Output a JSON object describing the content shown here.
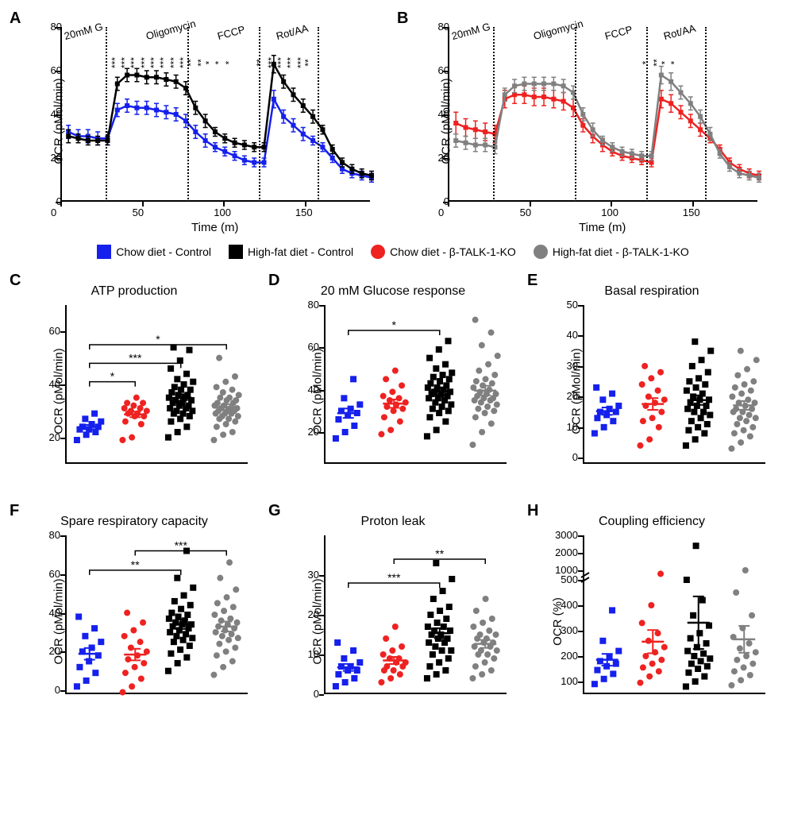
{
  "colors": {
    "chow_control": "#1520ec",
    "hfd_control": "#000000",
    "chow_ko": "#ee2221",
    "hfd_ko": "#808080",
    "axis": "#000000",
    "bg": "#ffffff"
  },
  "legend": [
    {
      "label": "Chow diet - Control",
      "color": "#1520ec",
      "shape": "square"
    },
    {
      "label": "High-fat diet - Control",
      "color": "#000000",
      "shape": "square"
    },
    {
      "label": "Chow diet - β-TALK-1-KO",
      "color": "#ee2221",
      "shape": "circle"
    },
    {
      "label": "High-fat diet - β-TALK-1-KO",
      "color": "#808080",
      "shape": "circle"
    }
  ],
  "panelA": {
    "label": "A",
    "ylabel": "OCR (pMol/min)",
    "xlabel": "Time (m)",
    "xlim": [
      0,
      190
    ],
    "ylim": [
      0,
      80
    ],
    "xticks": [
      0,
      50,
      100,
      150
    ],
    "yticks": [
      0,
      20,
      40,
      60,
      80
    ],
    "vlines": [
      28,
      78,
      122,
      158
    ],
    "injections": [
      {
        "x": 28,
        "label": "20mM G"
      },
      {
        "x": 78,
        "label": "Oligomycin"
      },
      {
        "x": 122,
        "label": "FCCP"
      },
      {
        "x": 158,
        "label": "Rot/AA"
      }
    ],
    "series": [
      {
        "name": "chow_control",
        "color": "#1520ec",
        "x": [
          4,
          10,
          16,
          22,
          28,
          34,
          40,
          46,
          52,
          58,
          64,
          70,
          76,
          82,
          88,
          94,
          100,
          106,
          112,
          118,
          124,
          130,
          136,
          142,
          148,
          154,
          160,
          166,
          172,
          178,
          184,
          190
        ],
        "y": [
          32,
          30,
          30,
          29,
          29,
          42,
          44,
          43,
          43,
          42,
          41,
          40,
          37,
          32,
          28,
          25,
          23,
          21,
          19,
          18,
          18,
          47,
          39,
          35,
          31,
          28,
          25,
          20,
          15,
          13,
          12,
          11
        ],
        "err": [
          3,
          3,
          3,
          3,
          3,
          3,
          3,
          3,
          3,
          3,
          3,
          3,
          3,
          3,
          3,
          2,
          2,
          2,
          2,
          2,
          2,
          4,
          3,
          3,
          3,
          2,
          2,
          2,
          2,
          2,
          2,
          2
        ]
      },
      {
        "name": "hfd_control",
        "color": "#000000",
        "x": [
          4,
          10,
          16,
          22,
          28,
          34,
          40,
          46,
          52,
          58,
          64,
          70,
          76,
          82,
          88,
          94,
          100,
          106,
          112,
          118,
          124,
          130,
          136,
          142,
          148,
          154,
          160,
          166,
          172,
          178,
          184,
          190
        ],
        "y": [
          30,
          29,
          28,
          28,
          28,
          54,
          58,
          58,
          57,
          57,
          56,
          55,
          52,
          43,
          37,
          32,
          29,
          27,
          26,
          25,
          25,
          63,
          55,
          49,
          44,
          39,
          33,
          24,
          18,
          15,
          13,
          12
        ],
        "err": [
          3,
          2,
          2,
          2,
          2,
          3,
          3,
          3,
          3,
          3,
          3,
          3,
          3,
          3,
          3,
          2,
          2,
          2,
          2,
          2,
          2,
          4,
          3,
          3,
          3,
          3,
          2,
          2,
          2,
          2,
          2,
          2
        ]
      }
    ],
    "sigstars": [
      {
        "x": 34,
        "txt": "***"
      },
      {
        "x": 40,
        "txt": "***"
      },
      {
        "x": 46,
        "txt": "***"
      },
      {
        "x": 52,
        "txt": "***"
      },
      {
        "x": 58,
        "txt": "***"
      },
      {
        "x": 64,
        "txt": "***"
      },
      {
        "x": 70,
        "txt": "***"
      },
      {
        "x": 76,
        "txt": "***"
      },
      {
        "x": 82,
        "txt": "**"
      },
      {
        "x": 88,
        "txt": "**"
      },
      {
        "x": 94,
        "txt": "*"
      },
      {
        "x": 100,
        "txt": "*"
      },
      {
        "x": 106,
        "txt": "*"
      },
      {
        "x": 124,
        "txt": "**"
      },
      {
        "x": 130,
        "txt": "***"
      },
      {
        "x": 136,
        "txt": "***"
      },
      {
        "x": 142,
        "txt": "***"
      },
      {
        "x": 148,
        "txt": "***"
      },
      {
        "x": 154,
        "txt": "**"
      }
    ]
  },
  "panelB": {
    "label": "B",
    "ylabel": "OCR (pMol/min)",
    "xlabel": "Time (m)",
    "xlim": [
      0,
      190
    ],
    "ylim": [
      0,
      80
    ],
    "xticks": [
      0,
      50,
      100,
      150
    ],
    "yticks": [
      0,
      20,
      40,
      60,
      80
    ],
    "vlines": [
      28,
      78,
      122,
      158
    ],
    "injections": [
      {
        "x": 28,
        "label": "20mM G"
      },
      {
        "x": 78,
        "label": "Oligomycin"
      },
      {
        "x": 122,
        "label": "FCCP"
      },
      {
        "x": 158,
        "label": "Rot/AA"
      }
    ],
    "series": [
      {
        "name": "chow_ko",
        "color": "#ee2221",
        "x": [
          4,
          10,
          16,
          22,
          28,
          34,
          40,
          46,
          52,
          58,
          64,
          70,
          76,
          82,
          88,
          94,
          100,
          106,
          112,
          118,
          124,
          130,
          136,
          142,
          148,
          154,
          160,
          166,
          172,
          178,
          184,
          190
        ],
        "y": [
          36,
          34,
          33,
          32,
          31,
          47,
          49,
          49,
          48,
          48,
          47,
          46,
          43,
          35,
          30,
          26,
          23,
          21,
          20,
          19,
          18,
          47,
          45,
          41,
          37,
          33,
          29,
          24,
          18,
          15,
          13,
          12
        ],
        "err": [
          5,
          4,
          4,
          4,
          4,
          4,
          4,
          4,
          4,
          4,
          4,
          4,
          4,
          3,
          3,
          3,
          2,
          2,
          2,
          2,
          2,
          4,
          4,
          3,
          3,
          3,
          2,
          2,
          2,
          2,
          2,
          2
        ]
      },
      {
        "name": "hfd_ko",
        "color": "#808080",
        "x": [
          4,
          10,
          16,
          22,
          28,
          34,
          40,
          46,
          52,
          58,
          64,
          70,
          76,
          82,
          88,
          94,
          100,
          106,
          112,
          118,
          124,
          130,
          136,
          142,
          148,
          154,
          160,
          166,
          172,
          178,
          184,
          190
        ],
        "y": [
          28,
          27,
          26,
          26,
          25,
          49,
          53,
          54,
          54,
          54,
          54,
          53,
          50,
          40,
          33,
          28,
          25,
          23,
          22,
          21,
          21,
          58,
          55,
          50,
          45,
          39,
          31,
          22,
          16,
          13,
          12,
          11
        ],
        "err": [
          3,
          3,
          3,
          3,
          3,
          3,
          3,
          3,
          3,
          3,
          3,
          3,
          3,
          3,
          3,
          2,
          2,
          2,
          2,
          2,
          2,
          4,
          4,
          3,
          3,
          3,
          3,
          2,
          2,
          2,
          2,
          2
        ]
      }
    ],
    "sigstars": [
      {
        "x": 124,
        "txt": "*"
      },
      {
        "x": 130,
        "txt": "**"
      },
      {
        "x": 136,
        "txt": "*"
      },
      {
        "x": 142,
        "txt": "*"
      }
    ]
  },
  "panelC": {
    "label": "C",
    "title": "ATP production",
    "ylabel": "OCR (pMol/min)",
    "ylim": [
      10,
      70
    ],
    "yticks": [
      20,
      40,
      60
    ],
    "groups": [
      "chow_control",
      "chow_ko",
      "hfd_control",
      "hfd_ko"
    ],
    "data": {
      "chow_control": [
        19,
        21,
        22,
        23,
        23,
        24,
        24,
        25,
        26,
        27,
        29
      ],
      "chow_ko": [
        19,
        20,
        25,
        26,
        28,
        28,
        29,
        29,
        30,
        30,
        31,
        31,
        32,
        33,
        33,
        35
      ],
      "hfd_control": [
        20,
        22,
        24,
        26,
        27,
        28,
        29,
        29,
        30,
        30,
        31,
        31,
        32,
        32,
        33,
        33,
        34,
        34,
        35,
        35,
        36,
        36,
        37,
        38,
        38,
        39,
        40,
        41,
        42,
        44,
        46,
        49,
        53,
        54
      ],
      "hfd_ko": [
        19,
        21,
        22,
        24,
        25,
        26,
        27,
        27,
        28,
        28,
        29,
        29,
        29,
        30,
        30,
        30,
        31,
        31,
        31,
        32,
        32,
        33,
        33,
        34,
        34,
        35,
        35,
        36,
        37,
        38,
        39,
        41,
        43,
        50
      ]
    },
    "sig": [
      {
        "from": 0,
        "to": 1,
        "y": 41,
        "txt": "*"
      },
      {
        "from": 0,
        "to": 2,
        "y": 48,
        "txt": "***"
      },
      {
        "from": 0,
        "to": 3,
        "y": 55,
        "txt": "*"
      }
    ]
  },
  "panelD": {
    "label": "D",
    "title": "20 mM Glucose response",
    "ylabel": "OCR (pMol/min)",
    "ylim": [
      5,
      80
    ],
    "yticks": [
      20,
      40,
      60,
      80
    ],
    "groups": [
      "chow_control",
      "chow_ko",
      "hfd_control",
      "hfd_ko"
    ],
    "data": {
      "chow_control": [
        17,
        20,
        23,
        26,
        28,
        29,
        30,
        31,
        33,
        36,
        45
      ],
      "chow_ko": [
        19,
        21,
        25,
        27,
        30,
        31,
        32,
        33,
        34,
        35,
        36,
        37,
        39,
        42,
        45,
        49
      ],
      "hfd_control": [
        18,
        21,
        25,
        27,
        29,
        30,
        31,
        32,
        33,
        34,
        35,
        36,
        36,
        37,
        38,
        38,
        39,
        39,
        40,
        41,
        41,
        42,
        43,
        44,
        45,
        46,
        47,
        48,
        50,
        52,
        55,
        59,
        63
      ],
      "hfd_ko": [
        14,
        20,
        24,
        27,
        29,
        30,
        31,
        32,
        33,
        34,
        35,
        35,
        36,
        36,
        37,
        38,
        38,
        39,
        40,
        41,
        42,
        43,
        44,
        45,
        47,
        49,
        52,
        56,
        61,
        67,
        73
      ]
    },
    "sig": [
      {
        "from": 0,
        "to": 2,
        "y": 68,
        "txt": "*"
      }
    ]
  },
  "panelE": {
    "label": "E",
    "title": "Basal respiration",
    "ylabel": "OCR (pMol/min)",
    "ylim": [
      -2,
      50
    ],
    "yticks": [
      0,
      10,
      20,
      30,
      40,
      50
    ],
    "groups": [
      "chow_control",
      "chow_ko",
      "hfd_control",
      "hfd_ko"
    ],
    "data": {
      "chow_control": [
        8,
        10,
        12,
        13,
        14,
        15,
        15,
        16,
        17,
        19,
        21,
        23
      ],
      "chow_ko": [
        4,
        6,
        10,
        12,
        13,
        15,
        17,
        18,
        19,
        20,
        22,
        24,
        26,
        28,
        30
      ],
      "hfd_control": [
        4,
        6,
        8,
        9,
        10,
        11,
        12,
        13,
        14,
        15,
        15,
        16,
        17,
        17,
        18,
        19,
        19,
        20,
        21,
        22,
        23,
        24,
        25,
        26,
        28,
        30,
        32,
        35,
        38
      ],
      "hfd_ko": [
        3,
        5,
        7,
        8,
        9,
        10,
        11,
        12,
        13,
        13,
        14,
        15,
        15,
        16,
        16,
        17,
        18,
        18,
        19,
        20,
        21,
        22,
        23,
        24,
        25,
        27,
        29,
        32,
        35
      ]
    },
    "sig": []
  },
  "panelF": {
    "label": "F",
    "title": "Spare respiratory capacity",
    "ylabel": "OCR (pMol/min)",
    "ylim": [
      -2,
      80
    ],
    "yticks": [
      0,
      20,
      40,
      60,
      80
    ],
    "groups": [
      "chow_control",
      "chow_ko",
      "hfd_control",
      "hfd_ko"
    ],
    "data": {
      "chow_control": [
        2,
        5,
        9,
        12,
        15,
        18,
        20,
        22,
        25,
        28,
        32,
        38
      ],
      "chow_ko": [
        -1,
        2,
        6,
        9,
        12,
        14,
        16,
        18,
        20,
        22,
        25,
        28,
        31,
        35,
        40
      ],
      "hfd_control": [
        10,
        14,
        17,
        19,
        21,
        23,
        25,
        26,
        27,
        28,
        29,
        30,
        31,
        32,
        33,
        34,
        34,
        35,
        36,
        37,
        38,
        39,
        40,
        42,
        44,
        46,
        49,
        53,
        58,
        72
      ],
      "hfd_ko": [
        8,
        12,
        15,
        18,
        20,
        22,
        24,
        26,
        27,
        28,
        29,
        30,
        31,
        32,
        33,
        34,
        35,
        36,
        37,
        39,
        41,
        43,
        45,
        48,
        52,
        58,
        66
      ]
    },
    "sig": [
      {
        "from": 0,
        "to": 2,
        "y": 62,
        "txt": "**"
      },
      {
        "from": 1,
        "to": 3,
        "y": 72,
        "txt": "***"
      }
    ]
  },
  "panelG": {
    "label": "G",
    "title": "Proton leak",
    "ylabel": "OCR (pMol/min)",
    "ylim": [
      0,
      40
    ],
    "yticks": [
      0,
      10,
      20,
      30
    ],
    "groups": [
      "chow_control",
      "chow_ko",
      "hfd_control",
      "hfd_ko"
    ],
    "data": {
      "chow_control": [
        2,
        3,
        4,
        5,
        6,
        6,
        7,
        7,
        8,
        9,
        11,
        13
      ],
      "chow_ko": [
        3,
        4,
        5,
        6,
        6,
        7,
        7,
        8,
        8,
        9,
        9,
        10,
        11,
        12,
        14,
        17
      ],
      "hfd_control": [
        4,
        5,
        6,
        7,
        8,
        9,
        10,
        11,
        11,
        12,
        13,
        13,
        14,
        14,
        15,
        15,
        16,
        16,
        17,
        17,
        18,
        19,
        20,
        21,
        22,
        24,
        26,
        29,
        33
      ],
      "hfd_ko": [
        4,
        5,
        6,
        7,
        8,
        9,
        10,
        10,
        11,
        11,
        12,
        12,
        13,
        13,
        14,
        14,
        15,
        15,
        16,
        17,
        18,
        19,
        21,
        24
      ]
    },
    "sig": [
      {
        "from": 0,
        "to": 2,
        "y": 28,
        "txt": "***"
      },
      {
        "from": 1,
        "to": 3,
        "y": 34,
        "txt": "**"
      }
    ]
  },
  "panelH": {
    "label": "H",
    "title": "Coupling efficiency",
    "ylabel": "OCR (%)",
    "broken": true,
    "ylim_lower": [
      50,
      500
    ],
    "ylim_upper": [
      1000,
      3000
    ],
    "yticks_lower": [
      100,
      200,
      300,
      400,
      500
    ],
    "yticks_upper": [
      1000,
      2000,
      3000
    ],
    "groups": [
      "chow_control",
      "chow_ko",
      "hfd_control",
      "hfd_ko"
    ],
    "data": {
      "chow_control": [
        90,
        110,
        130,
        145,
        160,
        170,
        180,
        195,
        220,
        260,
        380
      ],
      "chow_ko": [
        95,
        120,
        140,
        155,
        170,
        185,
        200,
        215,
        235,
        260,
        290,
        330,
        400,
        800
      ],
      "hfd_control": [
        80,
        100,
        120,
        135,
        150,
        160,
        170,
        180,
        190,
        200,
        210,
        220,
        235,
        250,
        270,
        290,
        320,
        360,
        420,
        500,
        2400
      ],
      "hfd_ko": [
        85,
        105,
        125,
        140,
        155,
        170,
        185,
        200,
        215,
        230,
        250,
        275,
        310,
        360,
        450,
        1000
      ]
    },
    "sig": []
  },
  "group_colors": {
    "chow_control": "#1520ec",
    "chow_ko": "#ee2221",
    "hfd_control": "#000000",
    "hfd_ko": "#808080"
  },
  "group_shapes": {
    "chow_control": "square",
    "chow_ko": "circle",
    "hfd_control": "square",
    "hfd_ko": "circle"
  }
}
